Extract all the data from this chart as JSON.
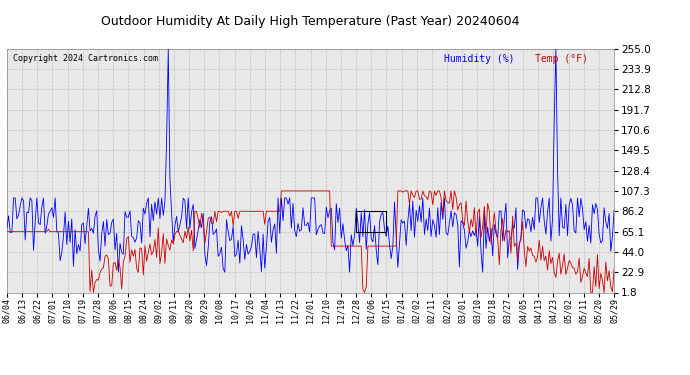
{
  "title": "Outdoor Humidity At Daily High Temperature (Past Year) 20240604",
  "copyright": "Copyright 2024 Cartronics.com",
  "legend_humidity": "Humidity (%)",
  "legend_temp": "Temp (°F)",
  "color_humidity": "#0000ff",
  "color_temp": "#cc0000",
  "color_grid": "#bbbbbb",
  "color_title": "#000000",
  "color_copyright": "#000000",
  "background_color": "#ffffff",
  "plot_bg_color": "#e8e8e8",
  "yticks": [
    1.8,
    22.9,
    44.0,
    65.1,
    86.2,
    107.3,
    128.4,
    149.5,
    170.6,
    191.7,
    212.8,
    233.9,
    255.0
  ],
  "ylim": [
    1.8,
    255.0
  ],
  "num_points": 366,
  "x_tick_labels": [
    "06/04",
    "06/13",
    "06/22",
    "07/01",
    "07/10",
    "07/19",
    "07/28",
    "08/06",
    "08/15",
    "08/24",
    "09/02",
    "09/11",
    "09/20",
    "09/29",
    "10/08",
    "10/17",
    "10/26",
    "11/04",
    "11/13",
    "11/22",
    "12/01",
    "12/10",
    "12/19",
    "12/28",
    "01/06",
    "01/15",
    "01/24",
    "02/02",
    "02/11",
    "02/20",
    "03/01",
    "03/10",
    "03/18",
    "03/27",
    "04/05",
    "04/13",
    "04/23",
    "05/02",
    "05/11",
    "05/20",
    "05/29"
  ]
}
